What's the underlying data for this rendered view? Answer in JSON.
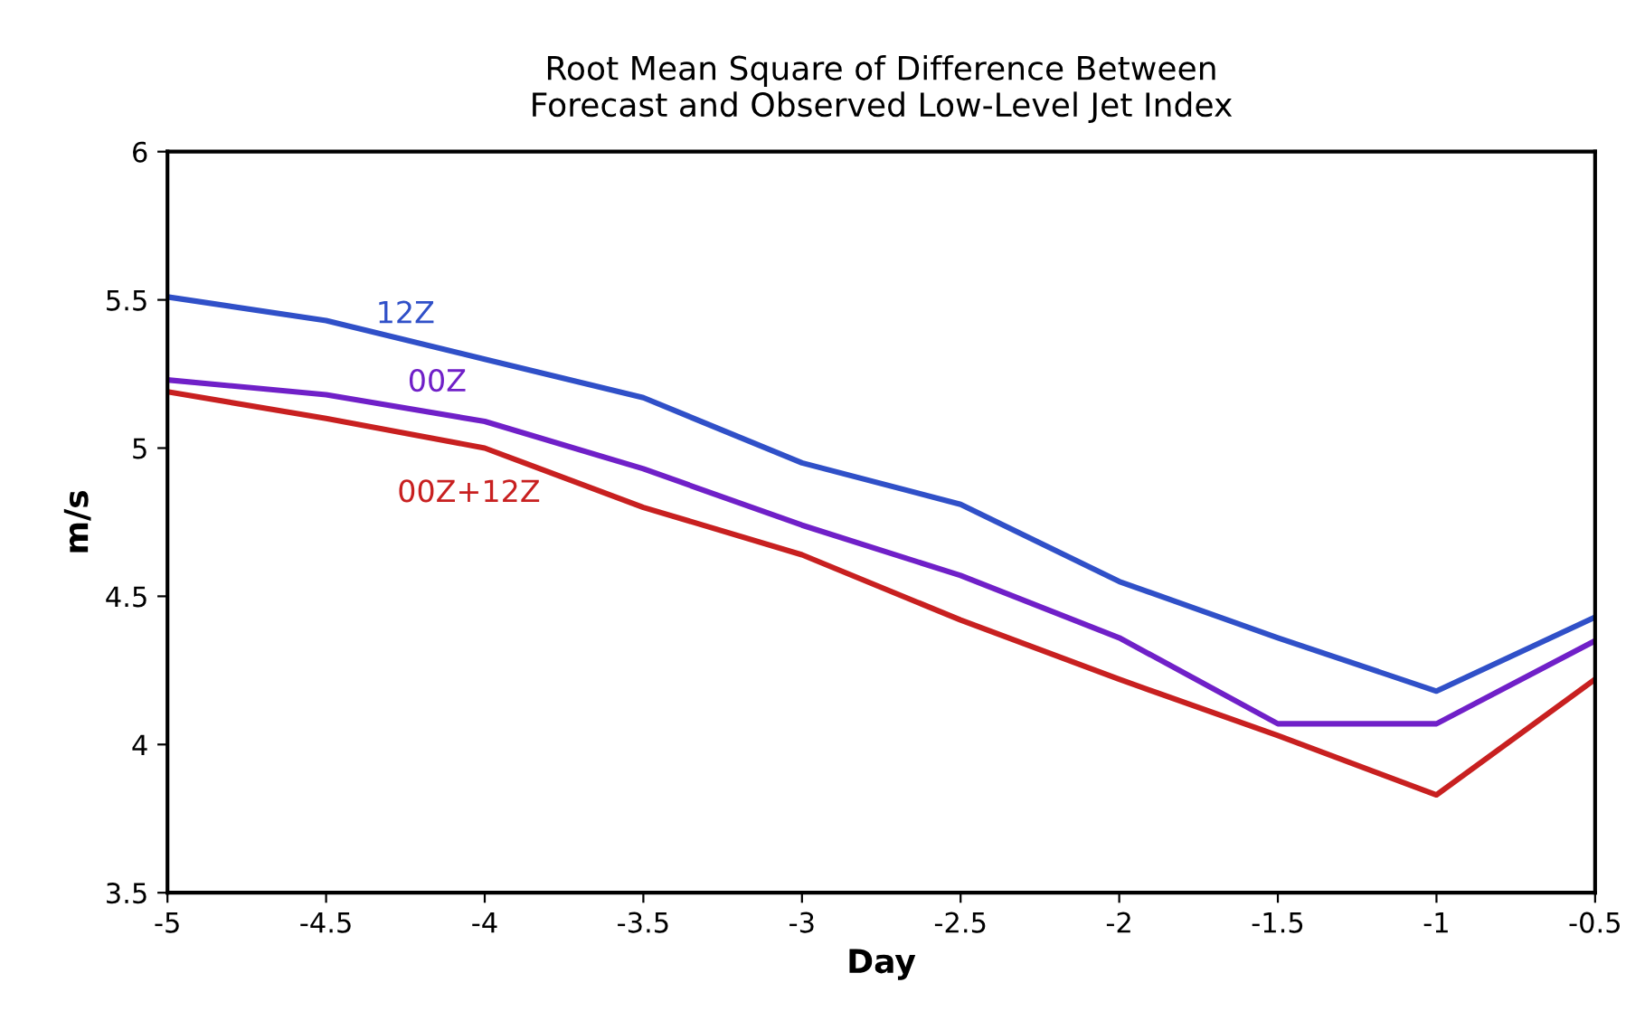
{
  "chart_data": {
    "type": "line",
    "title": "Root Mean Square of Difference Between\nForecast and Observed Low-Level Jet Index",
    "xlabel": "Day",
    "ylabel": "m/s",
    "x": [
      -5,
      -4.5,
      -4,
      -3.5,
      -3,
      -2.5,
      -2,
      -1.5,
      -1,
      -0.5
    ],
    "series": [
      {
        "name": "12Z",
        "color": "#3050c8",
        "values": [
          5.51,
          5.43,
          5.3,
          5.17,
          4.95,
          4.81,
          4.55,
          4.36,
          4.18,
          4.43
        ]
      },
      {
        "name": "00Z",
        "color": "#7020c8",
        "values": [
          5.23,
          5.18,
          5.09,
          4.93,
          4.74,
          4.57,
          4.36,
          4.07,
          4.07,
          4.35
        ]
      },
      {
        "name": "00Z+12Z",
        "color": "#c82020",
        "values": [
          5.19,
          5.1,
          5.0,
          4.8,
          4.64,
          4.42,
          4.22,
          4.03,
          3.83,
          4.22
        ]
      }
    ],
    "xlim": [
      -5,
      -0.5
    ],
    "ylim": [
      3.5,
      6
    ],
    "xticks": [
      -5,
      -4.5,
      -4,
      -3.5,
      -3,
      -2.5,
      -2,
      -1.5,
      -1,
      -0.5
    ],
    "yticks": [
      3.5,
      4,
      4.5,
      5,
      5.5,
      6
    ],
    "grid": false,
    "legend": false,
    "marker": "none",
    "line_style": "solid"
  }
}
